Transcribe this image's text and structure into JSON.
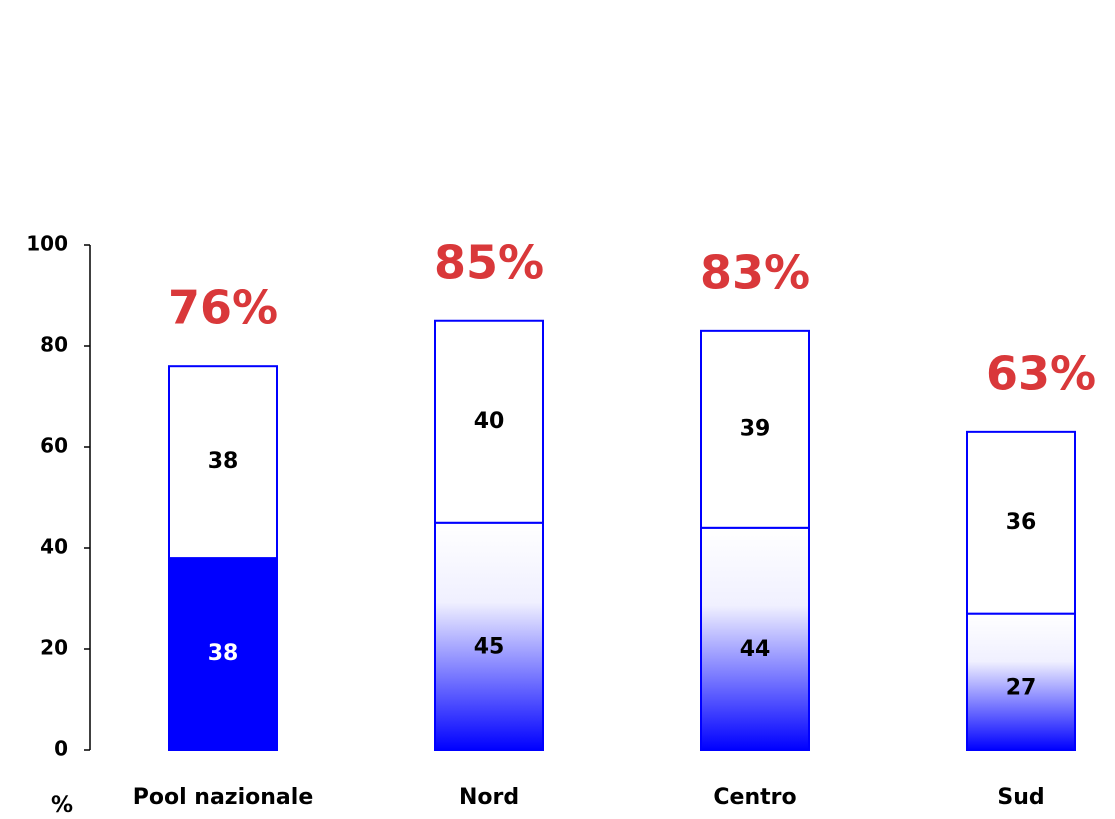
{
  "chart_data": {
    "type": "stacked_bar",
    "y_label": "%",
    "categories": [
      "Pool nazionale",
      "Nord",
      "Centro",
      "Sud"
    ],
    "series": [
      {
        "color": "#0000ff",
        "values": [
          38,
          45,
          44,
          27
        ],
        "fill_styles": [
          "solid",
          "gradient",
          "gradient",
          "gradient"
        ]
      },
      {
        "color": "#ffffff",
        "values": [
          38,
          40,
          39,
          36
        ]
      }
    ],
    "totals": {
      "color": "#d9383a",
      "values": [
        76,
        85,
        83,
        63
      ],
      "value_labels": [
        "76%",
        "85%",
        "83%",
        "63%"
      ]
    },
    "ylim": [
      0,
      100
    ],
    "yticks": [
      0,
      20,
      40,
      60,
      80,
      100
    ]
  }
}
